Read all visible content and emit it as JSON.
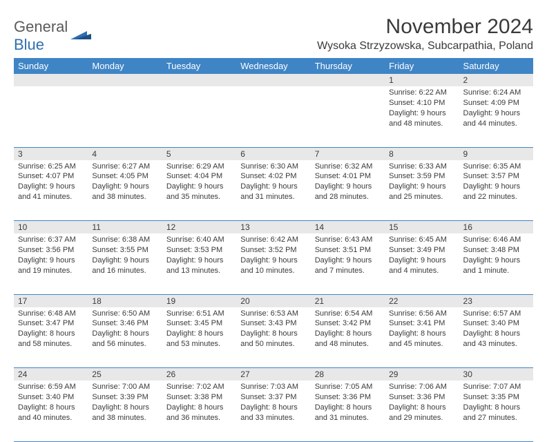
{
  "brand": {
    "part1": "General",
    "part2": "Blue"
  },
  "title": "November 2024",
  "location": "Wysoka Strzyzowska, Subcarpathia, Poland",
  "colors": {
    "header_bg": "#3f85c6",
    "header_fg": "#ffffff",
    "daynum_bg": "#e8e8e8",
    "text": "#3a3a3a",
    "rule": "#3f85c6",
    "logo_gray": "#5a5a5a",
    "logo_blue": "#2f6fb0"
  },
  "weekdays": [
    "Sunday",
    "Monday",
    "Tuesday",
    "Wednesday",
    "Thursday",
    "Friday",
    "Saturday"
  ],
  "weeks": [
    [
      null,
      null,
      null,
      null,
      null,
      {
        "n": "1",
        "sr": "6:22 AM",
        "ss": "4:10 PM",
        "dl": "9 hours and 48 minutes."
      },
      {
        "n": "2",
        "sr": "6:24 AM",
        "ss": "4:09 PM",
        "dl": "9 hours and 44 minutes."
      }
    ],
    [
      {
        "n": "3",
        "sr": "6:25 AM",
        "ss": "4:07 PM",
        "dl": "9 hours and 41 minutes."
      },
      {
        "n": "4",
        "sr": "6:27 AM",
        "ss": "4:05 PM",
        "dl": "9 hours and 38 minutes."
      },
      {
        "n": "5",
        "sr": "6:29 AM",
        "ss": "4:04 PM",
        "dl": "9 hours and 35 minutes."
      },
      {
        "n": "6",
        "sr": "6:30 AM",
        "ss": "4:02 PM",
        "dl": "9 hours and 31 minutes."
      },
      {
        "n": "7",
        "sr": "6:32 AM",
        "ss": "4:01 PM",
        "dl": "9 hours and 28 minutes."
      },
      {
        "n": "8",
        "sr": "6:33 AM",
        "ss": "3:59 PM",
        "dl": "9 hours and 25 minutes."
      },
      {
        "n": "9",
        "sr": "6:35 AM",
        "ss": "3:57 PM",
        "dl": "9 hours and 22 minutes."
      }
    ],
    [
      {
        "n": "10",
        "sr": "6:37 AM",
        "ss": "3:56 PM",
        "dl": "9 hours and 19 minutes."
      },
      {
        "n": "11",
        "sr": "6:38 AM",
        "ss": "3:55 PM",
        "dl": "9 hours and 16 minutes."
      },
      {
        "n": "12",
        "sr": "6:40 AM",
        "ss": "3:53 PM",
        "dl": "9 hours and 13 minutes."
      },
      {
        "n": "13",
        "sr": "6:42 AM",
        "ss": "3:52 PM",
        "dl": "9 hours and 10 minutes."
      },
      {
        "n": "14",
        "sr": "6:43 AM",
        "ss": "3:51 PM",
        "dl": "9 hours and 7 minutes."
      },
      {
        "n": "15",
        "sr": "6:45 AM",
        "ss": "3:49 PM",
        "dl": "9 hours and 4 minutes."
      },
      {
        "n": "16",
        "sr": "6:46 AM",
        "ss": "3:48 PM",
        "dl": "9 hours and 1 minute."
      }
    ],
    [
      {
        "n": "17",
        "sr": "6:48 AM",
        "ss": "3:47 PM",
        "dl": "8 hours and 58 minutes."
      },
      {
        "n": "18",
        "sr": "6:50 AM",
        "ss": "3:46 PM",
        "dl": "8 hours and 56 minutes."
      },
      {
        "n": "19",
        "sr": "6:51 AM",
        "ss": "3:45 PM",
        "dl": "8 hours and 53 minutes."
      },
      {
        "n": "20",
        "sr": "6:53 AM",
        "ss": "3:43 PM",
        "dl": "8 hours and 50 minutes."
      },
      {
        "n": "21",
        "sr": "6:54 AM",
        "ss": "3:42 PM",
        "dl": "8 hours and 48 minutes."
      },
      {
        "n": "22",
        "sr": "6:56 AM",
        "ss": "3:41 PM",
        "dl": "8 hours and 45 minutes."
      },
      {
        "n": "23",
        "sr": "6:57 AM",
        "ss": "3:40 PM",
        "dl": "8 hours and 43 minutes."
      }
    ],
    [
      {
        "n": "24",
        "sr": "6:59 AM",
        "ss": "3:40 PM",
        "dl": "8 hours and 40 minutes."
      },
      {
        "n": "25",
        "sr": "7:00 AM",
        "ss": "3:39 PM",
        "dl": "8 hours and 38 minutes."
      },
      {
        "n": "26",
        "sr": "7:02 AM",
        "ss": "3:38 PM",
        "dl": "8 hours and 36 minutes."
      },
      {
        "n": "27",
        "sr": "7:03 AM",
        "ss": "3:37 PM",
        "dl": "8 hours and 33 minutes."
      },
      {
        "n": "28",
        "sr": "7:05 AM",
        "ss": "3:36 PM",
        "dl": "8 hours and 31 minutes."
      },
      {
        "n": "29",
        "sr": "7:06 AM",
        "ss": "3:36 PM",
        "dl": "8 hours and 29 minutes."
      },
      {
        "n": "30",
        "sr": "7:07 AM",
        "ss": "3:35 PM",
        "dl": "8 hours and 27 minutes."
      }
    ]
  ],
  "labels": {
    "sunrise": "Sunrise:",
    "sunset": "Sunset:",
    "daylight": "Daylight:"
  }
}
